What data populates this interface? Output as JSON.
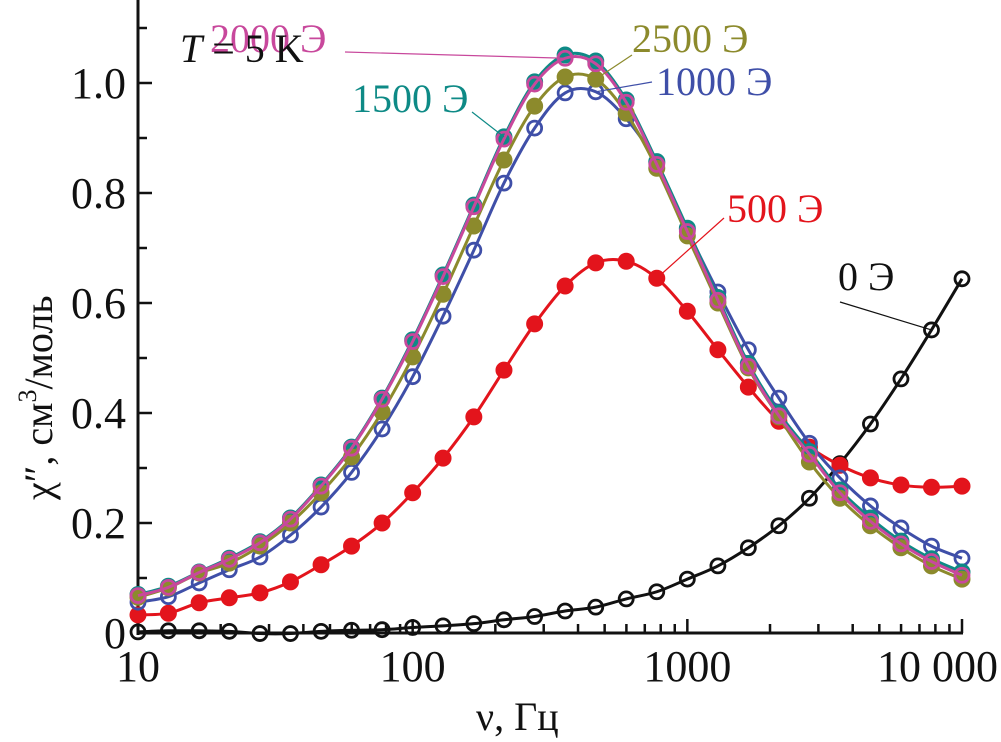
{
  "chart_data": {
    "type": "line",
    "title": "",
    "annotation": {
      "italic_part": "T",
      "rest": " = 5 K"
    },
    "xlabel": "ν, Гц",
    "ylabel": {
      "base": "χ″, см",
      "sup": "3",
      "tail": "/моль"
    },
    "xscale": "log",
    "xlim": [
      10,
      10000
    ],
    "ylim": [
      0,
      1.15
    ],
    "xticks": [
      {
        "value": 10,
        "label": "10"
      },
      {
        "value": 100,
        "label": "100"
      },
      {
        "value": 1000,
        "label": "1000"
      },
      {
        "value": 10000,
        "label": "10 000"
      }
    ],
    "yticks": [
      {
        "value": 0,
        "label": "0"
      },
      {
        "value": 0.2,
        "label": "0.2"
      },
      {
        "value": 0.4,
        "label": "0.4"
      },
      {
        "value": 0.6,
        "label": "0.6"
      },
      {
        "value": 0.8,
        "label": "0.8"
      },
      {
        "value": 1.0,
        "label": "1.0"
      }
    ],
    "y_minor_step": 0.1,
    "grid": false,
    "legend": "inline-labels",
    "x": [
      10,
      12.9,
      16.7,
      21.5,
      27.8,
      35.9,
      46.4,
      59.9,
      77.4,
      100,
      129,
      167,
      215,
      278,
      359,
      464,
      599,
      774,
      1000,
      1292,
      1668,
      2154,
      2783,
      3594,
      4642,
      5995,
      7743,
      10000
    ],
    "series": [
      {
        "name": "0 Э",
        "color": "#111111",
        "marker": "open",
        "values": [
          0.002,
          0.004,
          0.004,
          0.003,
          -0.001,
          -0.001,
          0.003,
          0.005,
          0.006,
          0.01,
          0.013,
          0.017,
          0.024,
          0.03,
          0.04,
          0.047,
          0.062,
          0.075,
          0.098,
          0.122,
          0.155,
          0.195,
          0.245,
          0.308,
          0.38,
          0.462,
          0.551,
          0.644
        ]
      },
      {
        "name": "500 Э",
        "color": "#e3141c",
        "marker": "filled",
        "values": [
          0.033,
          0.036,
          0.055,
          0.064,
          0.073,
          0.093,
          0.124,
          0.158,
          0.2,
          0.255,
          0.318,
          0.393,
          0.478,
          0.562,
          0.631,
          0.673,
          0.676,
          0.645,
          0.585,
          0.515,
          0.447,
          0.385,
          0.338,
          0.305,
          0.282,
          0.269,
          0.265,
          0.267
        ]
      },
      {
        "name": "1000 Э",
        "color": "#3f4fa8",
        "marker": "open",
        "values": [
          0.056,
          0.066,
          0.091,
          0.115,
          0.138,
          0.178,
          0.229,
          0.292,
          0.371,
          0.466,
          0.576,
          0.696,
          0.818,
          0.918,
          0.982,
          0.984,
          0.935,
          0.855,
          0.733,
          0.62,
          0.515,
          0.427,
          0.345,
          0.282,
          0.231,
          0.191,
          0.158,
          0.136
        ]
      },
      {
        "name": "1500 Э",
        "color": "#0e8a86",
        "marker": "filled",
        "values": [
          0.07,
          0.085,
          0.111,
          0.136,
          0.166,
          0.209,
          0.269,
          0.338,
          0.427,
          0.533,
          0.651,
          0.778,
          0.902,
          1.002,
          1.051,
          1.04,
          0.969,
          0.857,
          0.736,
          0.61,
          0.49,
          0.4,
          0.33,
          0.26,
          0.209,
          0.167,
          0.135,
          0.111
        ]
      },
      {
        "name": "2500 Э",
        "color": "#8c8a2c",
        "marker": "filled",
        "values": [
          0.065,
          0.082,
          0.109,
          0.127,
          0.158,
          0.2,
          0.255,
          0.32,
          0.402,
          0.502,
          0.616,
          0.74,
          0.86,
          0.958,
          1.011,
          1.007,
          0.945,
          0.845,
          0.722,
          0.6,
          0.482,
          0.393,
          0.311,
          0.245,
          0.195,
          0.155,
          0.122,
          0.098
        ]
      },
      {
        "name": "2000 Э",
        "color": "#c8489c",
        "marker": "open",
        "values": [
          0.068,
          0.083,
          0.11,
          0.134,
          0.164,
          0.207,
          0.267,
          0.336,
          0.425,
          0.53,
          0.648,
          0.775,
          0.898,
          0.998,
          1.045,
          1.035,
          0.965,
          0.852,
          0.73,
          0.605,
          0.485,
          0.395,
          0.325,
          0.255,
          0.203,
          0.162,
          0.13,
          0.105
        ]
      }
    ],
    "series_labels": [
      {
        "series": "2000 Э",
        "text": "2000 Э",
        "anchor_index": 14
      },
      {
        "series": "2500 Э",
        "text": "2500 Э",
        "anchor_index": 15
      },
      {
        "series": "1500 Э",
        "text": "1500 Э",
        "anchor_index": 12
      },
      {
        "series": "1000 Э",
        "text": "1000 Э",
        "anchor_index": 15
      },
      {
        "series": "500 Э",
        "text": "500 Э",
        "anchor_index": 17
      },
      {
        "series": "0 Э",
        "text": "0 Э",
        "anchor_index": 26
      }
    ]
  }
}
